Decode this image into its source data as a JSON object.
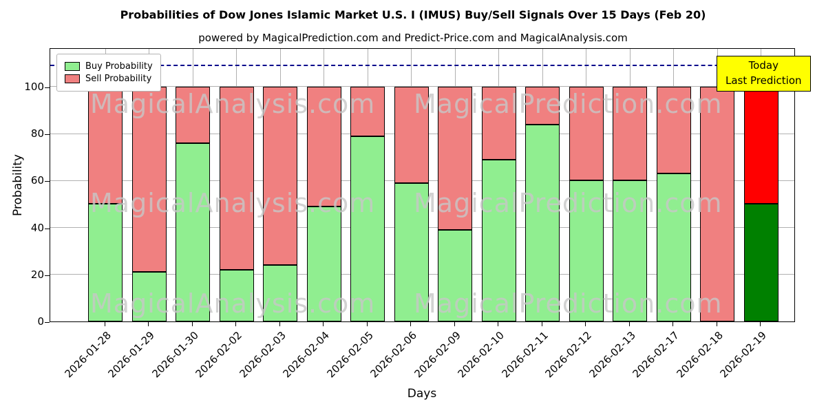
{
  "title": "Probabilities of Dow Jones Islamic Market U.S. I (IMUS) Buy/Sell Signals Over 15 Days (Feb 20)",
  "subtitle": "powered by MagicalPrediction.com and Predict-Price.com and MagicalAnalysis.com",
  "axes": {
    "xlabel": "Days",
    "ylabel": "Probability",
    "yticks": [
      0,
      20,
      40,
      60,
      80,
      100
    ]
  },
  "legend": [
    {
      "label": "Buy Probability",
      "color": "#90EE90"
    },
    {
      "label": "Sell Probability",
      "color": "#F08080"
    }
  ],
  "annotation": {
    "lines": [
      "Today",
      "Last Prediction"
    ],
    "bg_color": "#FFFF00"
  },
  "watermark_texts": [
    "MagicalAnalysis.com",
    "MagicalPrediction.com"
  ],
  "colors": {
    "buy": "#90EE90",
    "sell": "#F08080",
    "today_buy": "#008000",
    "today_sell": "#FF0000",
    "grid": "#b0b0b0",
    "dashed_line": "#00008b",
    "watermark": "#c8c8c8",
    "annotation_bg": "#FFFF00",
    "bar_edge": "#000000"
  },
  "chart_data": {
    "type": "bar",
    "stacked": true,
    "title": "Probabilities of Dow Jones Islamic Market U.S. I (IMUS) Buy/Sell Signals Over 15 Days (Feb 20)",
    "xlabel": "Days",
    "ylabel": "Probability",
    "categories": [
      "2026-01-28",
      "2026-01-29",
      "2026-01-30",
      "2026-02-02",
      "2026-02-03",
      "2026-02-04",
      "2026-02-05",
      "2026-02-06",
      "2026-02-09",
      "2026-02-10",
      "2026-02-11",
      "2026-02-12",
      "2026-02-13",
      "2026-02-17",
      "2026-02-18",
      "2026-02-19"
    ],
    "series": [
      {
        "name": "Buy Probability",
        "color": "#90EE90",
        "values": [
          50,
          21,
          76,
          22,
          24,
          49,
          79,
          59,
          39,
          69,
          84,
          60,
          60,
          63,
          0,
          50
        ]
      },
      {
        "name": "Sell Probability",
        "color": "#F08080",
        "values": [
          50,
          79,
          24,
          78,
          76,
          51,
          21,
          41,
          61,
          31,
          16,
          40,
          40,
          37,
          100,
          50
        ]
      }
    ],
    "today_index": 15,
    "today_colors": {
      "buy": "#008000",
      "sell": "#FF0000"
    },
    "ylim": [
      0,
      116.7
    ],
    "dashed_line_y": 110,
    "grid": true,
    "legend_position": "upper left"
  }
}
